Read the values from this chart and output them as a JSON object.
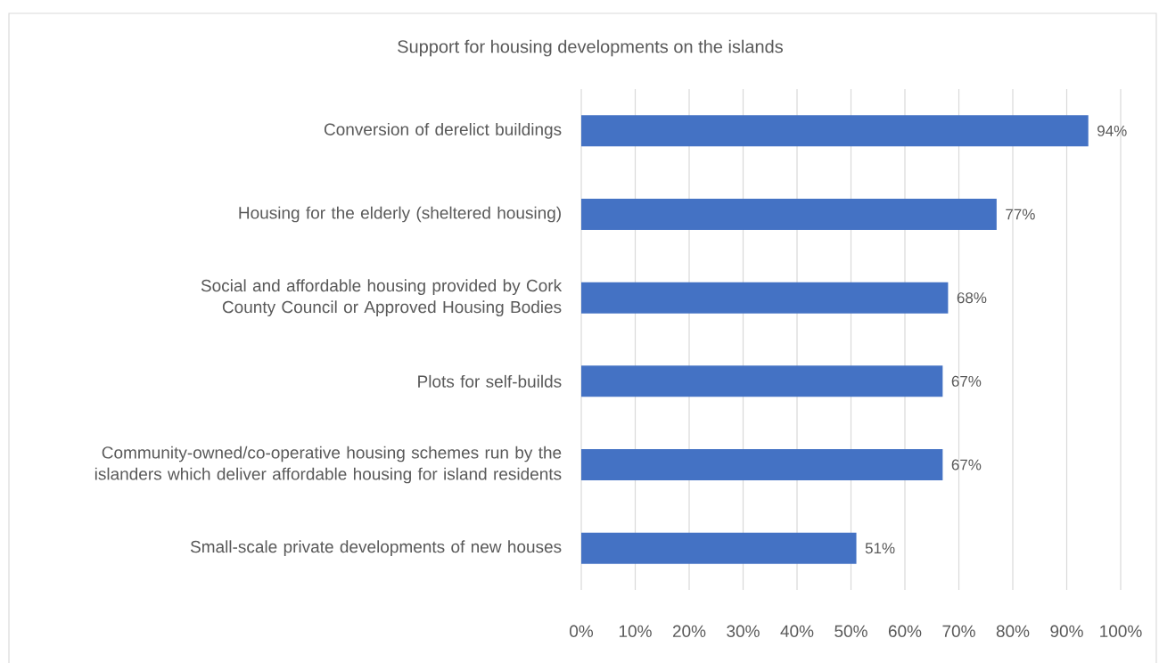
{
  "chart_data": {
    "type": "bar",
    "orientation": "horizontal",
    "title": "Support for housing developments on the islands",
    "categories": [
      "Conversion of derelict buildings",
      "Housing for the elderly (sheltered housing)",
      "Social and affordable housing provided by Cork County Council or Approved Housing Bodies",
      "Plots for self-builds",
      "Community-owned/co-operative housing schemes run by the islanders which deliver affordable housing for island residents",
      "Small-scale private developments of new houses"
    ],
    "values": [
      94,
      77,
      68,
      67,
      67,
      51
    ],
    "value_labels": [
      "94%",
      "77%",
      "68%",
      "67%",
      "67%",
      "51%"
    ],
    "color": "#4472c4",
    "xlim": [
      0,
      100
    ],
    "xticks": [
      {
        "value": 0,
        "label": "0%"
      },
      {
        "value": 10,
        "label": "10%"
      },
      {
        "value": 20,
        "label": "20%"
      },
      {
        "value": 30,
        "label": "30%"
      },
      {
        "value": 40,
        "label": "40%"
      },
      {
        "value": 50,
        "label": "50%"
      },
      {
        "value": 60,
        "label": "60%"
      },
      {
        "value": 70,
        "label": "70%"
      },
      {
        "value": 80,
        "label": "80%"
      },
      {
        "value": 90,
        "label": "90%"
      },
      {
        "value": 100,
        "label": "100%"
      }
    ],
    "grid": "x"
  }
}
